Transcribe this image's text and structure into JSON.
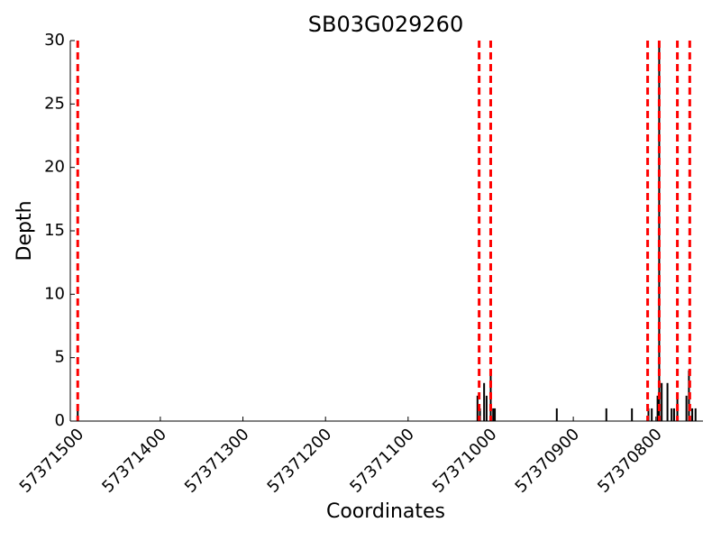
{
  "chart_data": {
    "type": "bar",
    "title": "SB03G029260",
    "xlabel": "Coordinates",
    "ylabel": "Depth",
    "x": [
      57371500,
      57371016,
      57371013,
      57371008,
      57371005,
      57371000,
      57370997,
      57370995,
      57370920,
      57370860,
      57370829,
      57370809,
      57370805,
      57370798,
      57370796,
      57370793,
      57370786,
      57370781,
      57370778,
      57370774,
      57370763,
      57370760,
      57370756,
      57370752
    ],
    "values": [
      1,
      2,
      1,
      3,
      2,
      4,
      1,
      1,
      1,
      1,
      1,
      1,
      1,
      2,
      30,
      3,
      3,
      1,
      1,
      2,
      2,
      4,
      1,
      1
    ],
    "color": "#000000",
    "vlines": [
      57371500,
      57371014,
      57371000,
      57370810,
      57370796,
      57370774,
      57370759
    ],
    "vline_color": "#ff0000",
    "xlim": [
      57371509,
      57370743
    ],
    "xticks": [
      57371500,
      57371400,
      57371300,
      57371200,
      57371100,
      57371000,
      57370900,
      57370800
    ],
    "ylim": [
      0,
      30
    ],
    "yticks": [
      0,
      5,
      10,
      15,
      20,
      25,
      30
    ]
  }
}
